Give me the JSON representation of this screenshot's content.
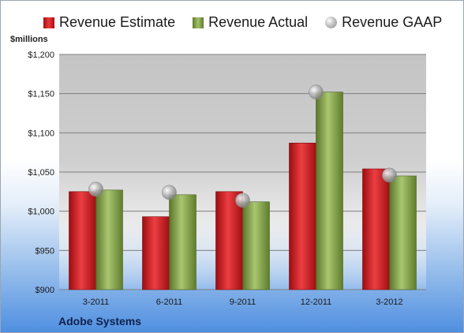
{
  "legend": {
    "estimate": "Revenue Estimate",
    "actual": "Revenue Actual",
    "gaap": "Revenue GAAP"
  },
  "unit_label": "$millions",
  "company": "Adobe Systems",
  "chart_data": {
    "type": "bar",
    "categories": [
      "3-2011",
      "6-2011",
      "9-2011",
      "12-2011",
      "3-2012"
    ],
    "series": [
      {
        "name": "Revenue Estimate",
        "kind": "bar",
        "color": "#d42024",
        "values": [
          1025,
          993,
          1025,
          1087,
          1054
        ]
      },
      {
        "name": "Revenue Actual",
        "kind": "bar",
        "color": "#8aaa4f",
        "values": [
          1027,
          1021,
          1012,
          1152,
          1045
        ]
      },
      {
        "name": "Revenue GAAP",
        "kind": "marker",
        "color": "#b0b0b0",
        "values": [
          1028,
          1024,
          1014,
          1152,
          1046
        ]
      }
    ],
    "ylim": [
      900,
      1200
    ],
    "yticks": [
      900,
      950,
      1000,
      1050,
      1100,
      1150,
      1200
    ],
    "ytick_labels": [
      "$900",
      "$950",
      "$1,000",
      "$1,050",
      "$1,100",
      "$1,150",
      "$1,200"
    ],
    "grid": true,
    "legend_position": "top"
  }
}
